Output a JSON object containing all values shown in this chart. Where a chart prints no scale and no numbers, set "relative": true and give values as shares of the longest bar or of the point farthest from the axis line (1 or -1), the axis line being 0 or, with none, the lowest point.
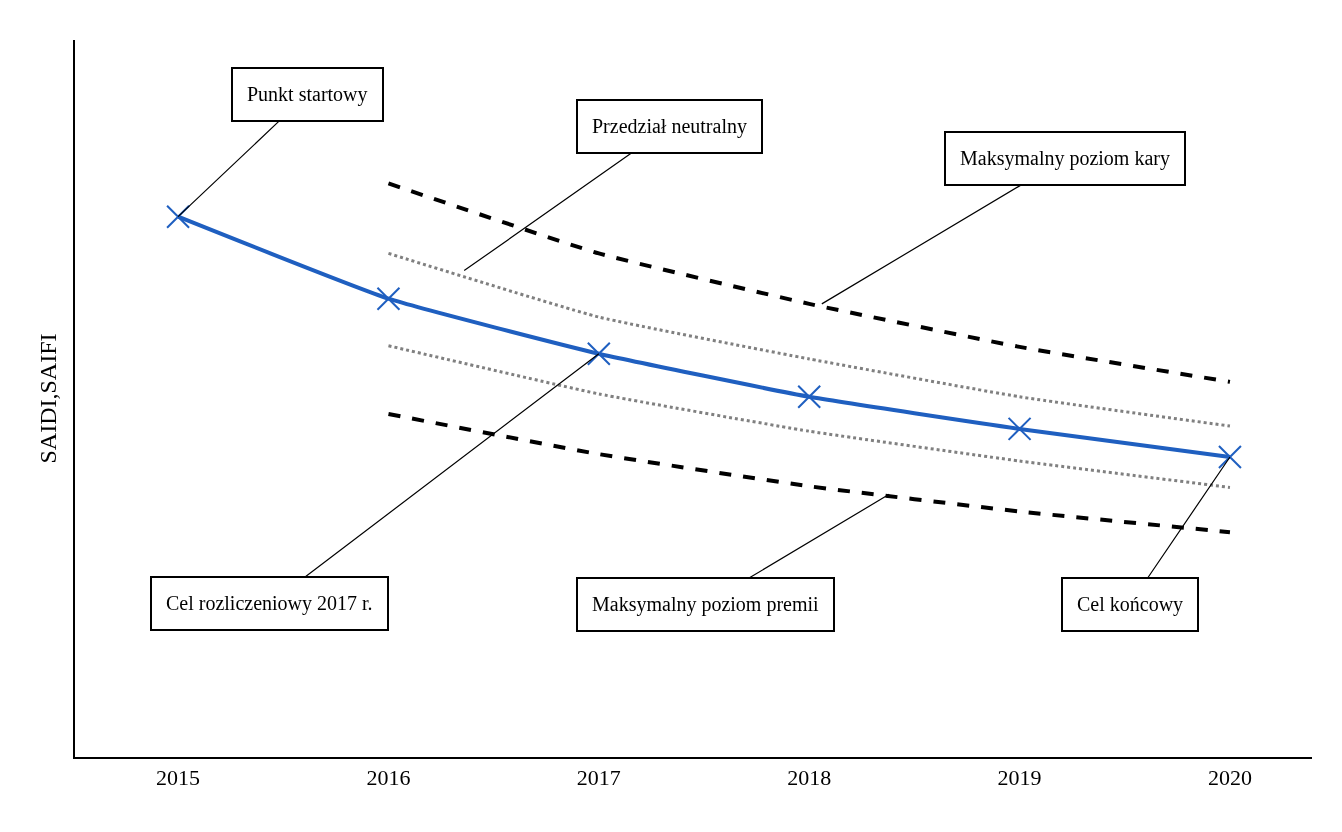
{
  "chart_data": {
    "type": "line",
    "relative": true,
    "ylabel": "SAIDI,SAIFI",
    "x": [
      2015,
      2016,
      2017,
      2018,
      2019,
      2020
    ],
    "xlim": [
      2014.51,
      2020.39
    ],
    "xticks": [
      2015,
      2016,
      2017,
      2018,
      2019,
      2020
    ],
    "series": [
      {
        "color": "#1f5fc0",
        "marker": "cross",
        "line_style": "solid",
        "values": [
          0.942,
          0.799,
          0.703,
          0.628,
          0.572,
          0.523
        ]
      },
      {
        "color": "#000000",
        "marker": "none",
        "line_style": "dashed",
        "x": [
          2016,
          2017,
          2018,
          2019,
          2020
        ],
        "values": [
          1.0,
          0.878,
          0.79,
          0.715,
          0.654
        ]
      },
      {
        "color": "#808080",
        "marker": "none",
        "line_style": "dotted",
        "x": [
          2016,
          2017,
          2018,
          2019,
          2020
        ],
        "values": [
          0.878,
          0.767,
          0.694,
          0.628,
          0.577
        ]
      },
      {
        "color": "#808080",
        "marker": "none",
        "line_style": "dotted",
        "x": [
          2016,
          2017,
          2018,
          2019,
          2020
        ],
        "values": [
          0.717,
          0.633,
          0.568,
          0.516,
          0.47
        ]
      },
      {
        "color": "#000000",
        "marker": "none",
        "line_style": "dashed",
        "x": [
          2016,
          2017,
          2018,
          2019,
          2020
        ],
        "values": [
          0.598,
          0.528,
          0.472,
          0.428,
          0.392
        ]
      }
    ],
    "annotations": [
      {
        "text": "Punkt startowy",
        "x": 2015,
        "y": 0.942
      },
      {
        "text": "Przedział neutralny",
        "x": 2016.36,
        "y": 0.848
      },
      {
        "text": "Maksymalny poziom kary",
        "x": 2018.06,
        "y": 0.79
      },
      {
        "text": "Cel rozliczeniowy 2017 r.",
        "x": 2017,
        "y": 0.703
      },
      {
        "text": "Maksymalny poziom premii",
        "x": 2018.38,
        "y": 0.458
      },
      {
        "text": "Cel końcowy",
        "x": 2020,
        "y": 0.523
      }
    ]
  }
}
